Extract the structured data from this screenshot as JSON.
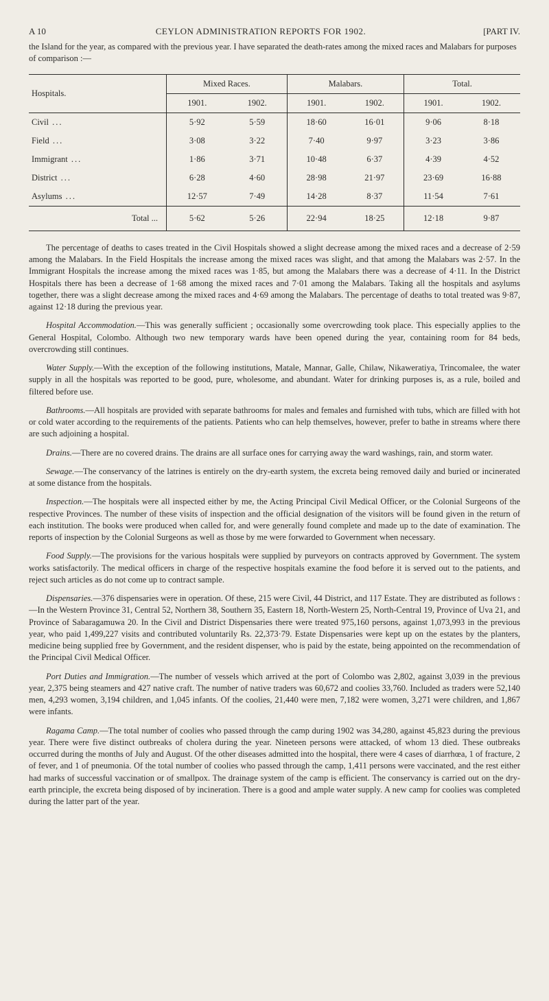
{
  "header": {
    "page_no": "A 10",
    "title": "CEYLON ADMINISTRATION REPORTS FOR 1902.",
    "part": "[PART IV."
  },
  "intro": "the Island for the year, as compared with the previous year.  I have separated the death-rates among the mixed races and Malabars for purposes of comparison :—",
  "table": {
    "stub_header": "Hospitals.",
    "groups": [
      "Mixed Races.",
      "Malabars.",
      "Total."
    ],
    "years": [
      "1901.",
      "1902.",
      "1901.",
      "1902.",
      "1901.",
      "1902."
    ],
    "rows": [
      {
        "label": "Civil",
        "vals": [
          "5·92",
          "5·59",
          "18·60",
          "16·01",
          "9·06",
          "8·18"
        ]
      },
      {
        "label": "Field",
        "vals": [
          "3·08",
          "3·22",
          "7·40",
          "9·97",
          "3·23",
          "3·86"
        ]
      },
      {
        "label": "Immigrant",
        "vals": [
          "1·86",
          "3·71",
          "10·48",
          "6·37",
          "4·39",
          "4·52"
        ]
      },
      {
        "label": "District",
        "vals": [
          "6·28",
          "4·60",
          "28·98",
          "21·97",
          "23·69",
          "16·88"
        ]
      },
      {
        "label": "Asylums",
        "vals": [
          "12·57",
          "7·49",
          "14·28",
          "8·37",
          "11·54",
          "7·61"
        ]
      }
    ],
    "total_label": "Total   ...",
    "total_vals": [
      "5·62",
      "5·26",
      "22·94",
      "18·25",
      "12·18",
      "9·87"
    ]
  },
  "paragraphs": {
    "p1": "The percentage of deaths to cases treated in the Civil Hospitals showed a slight decrease among the mixed races and a decrease of 2·59 among the Malabars. In the Field Hospitals the increase among the mixed races was slight, and that among the Malabars was 2·57. In the Immigrant Hospitals the increase among the mixed races was 1·85, but among the Malabars there was a decrease of 4·11. In the District Hospitals there has been a decrease of 1·68 among the mixed races and 7·01 among the Malabars. Taking all the hospitals and asylums together, there was a slight decrease among the mixed races and 4·69 among the Malabars. The percentage of deaths to total treated was 9·87, against 12·18 during the previous year.",
    "p2_lead": "Hospital Accommodation.",
    "p2": "—This was generally sufficient ; occasionally some overcrowding took place. This especially applies to the General Hospital, Colombo. Although two new temporary wards have been opened during the year, containing room for 84 beds, overcrowding still continues.",
    "p3_lead": "Water Supply.",
    "p3": "—With the exception of the following institutions, Matale, Mannar, Galle, Chilaw, Nikaweratiya, Trincomalee, the water supply in all the hospitals was reported to be good, pure, wholesome, and abundant. Water for drinking purposes is, as a rule, boiled and filtered before use.",
    "p4_lead": "Bathrooms.",
    "p4": "—All hospitals are provided with separate bathrooms for males and females and furnished with tubs, which are filled with hot or cold water according to the requirements of the patients. Patients who can help themselves, however, prefer to bathe in streams where there are such adjoining a hospital.",
    "p5_lead": "Drains.",
    "p5": "—There are no covered drains. The drains are all surface ones for carrying away the ward washings, rain, and storm water.",
    "p6_lead": "Sewage.",
    "p6": "—The conservancy of the latrines is entirely on the dry-earth system, the excreta being removed daily and buried or incinerated at some distance from the hospitals.",
    "p7_lead": "Inspection.",
    "p7": "—The hospitals were all inspected either by me, the Acting Principal Civil Medical Officer, or the Colonial Surgeons of the respective Provinces. The number of these visits of inspection and the official designation of the visitors will be found given in the return of each institution. The books were produced when called for, and were generally found complete and made up to the date of examination. The reports of inspection by the Colonial Surgeons as well as those by me were forwarded to Government when necessary.",
    "p8_lead": "Food Supply.",
    "p8": "—The provisions for the various hospitals were supplied by purveyors on contracts approved by Government. The system works satisfactorily. The medical officers in charge of the respective hospitals examine the food before it is served out to the patients, and reject such articles as do not come up to contract sample.",
    "p9_lead": "Dispensaries.",
    "p9": "—376 dispensaries were in operation. Of these, 215 were Civil, 44 District, and 117 Estate. They are distributed as follows :—In the Western Province 31, Central 52, Northern 38, Southern 35, Eastern 18, North-Western 25, North-Central 19, Province of Uva 21, and Province of Sabaragamuwa 20. In the Civil and District Dispensaries there were treated 975,160 persons, against 1,073,993 in the previous year, who paid 1,499,227 visits and contributed voluntarily Rs. 22,373·79. Estate Dispensaries were kept up on the estates by the planters, medicine being supplied free by Government, and the resident dispenser, who is paid by the estate, being appointed on the recommendation of the Principal Civil Medical Officer.",
    "p10_lead": "Port Duties and Immigration.",
    "p10": "—The number of vessels which arrived at the port of Colombo was 2,802, against 3,039 in the previous year, 2,375 being steamers and 427 native craft. The number of native traders was 60,672 and coolies 33,760. Included as traders were 52,140 men, 4,293 women, 3,194 children, and 1,045 infants. Of the coolies, 21,440 were men, 7,182 were women, 3,271 were children, and 1,867 were infants.",
    "p11_lead": "Ragama Camp.",
    "p11": "—The total number of coolies who passed through the camp during 1902 was 34,280, against 45,823 during the previous year. There were five distinct outbreaks of cholera during the year. Nineteen persons were attacked, of whom 13 died. These outbreaks occurred during the months of July and August. Of the other diseases admitted into the hospital, there were 4 cases of diarrhœa, 1 of fracture, 2 of fever, and 1 of pneumonia. Of the total number of coolies who passed through the camp, 1,411 persons were vaccinated, and the rest either had marks of successful vaccination or of smallpox. The drainage system of the camp is efficient. The conservancy is carried out on the dry-earth principle, the excreta being disposed of by incineration. There is a good and ample water supply. A new camp for coolies was completed during the latter part of the year."
  }
}
